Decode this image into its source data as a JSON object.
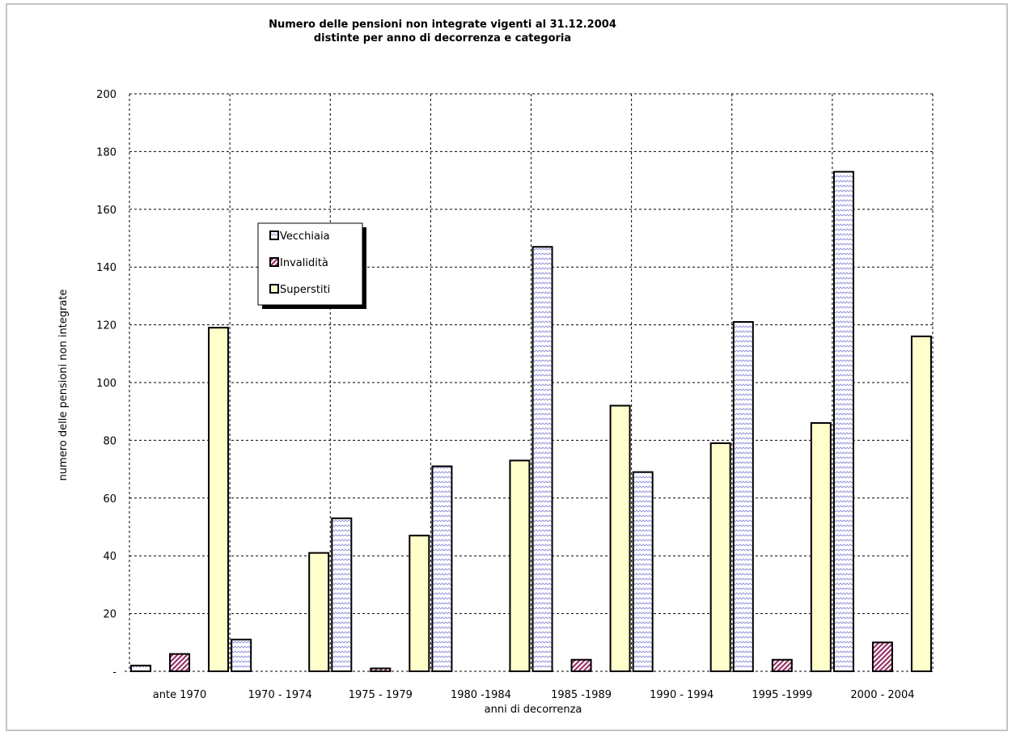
{
  "chart_data": {
    "type": "bar",
    "title": "Numero delle pensioni non integrate vigenti al 31.12.2004",
    "subtitle": "distinte per anno di decorrenza e categoria",
    "xlabel": "anni di decorrenza",
    "ylabel": "numero delle pensioni non integrate",
    "ylim": [
      0,
      200
    ],
    "yticks": [
      {
        "value": 0,
        "label": "-"
      },
      {
        "value": 20,
        "label": "20"
      },
      {
        "value": 40,
        "label": "40"
      },
      {
        "value": 60,
        "label": "60"
      },
      {
        "value": 80,
        "label": "80"
      },
      {
        "value": 100,
        "label": "100"
      },
      {
        "value": 120,
        "label": "120"
      },
      {
        "value": 140,
        "label": "140"
      },
      {
        "value": 160,
        "label": "160"
      },
      {
        "value": 180,
        "label": "180"
      },
      {
        "value": 200,
        "label": "200"
      }
    ],
    "grid": true,
    "legend_position": "upper-left",
    "categories": [
      "ante 1970",
      "1970 - 1974",
      "1975 - 1979",
      "1980 -1984",
      "1985 -1989",
      "1990 - 1994",
      "1995 -1999",
      "2000 - 2004"
    ],
    "series": [
      {
        "name": "Vecchiaia",
        "pattern": "wave",
        "color": "#ccccff",
        "values": [
          2,
          11,
          53,
          71,
          147,
          69,
          121,
          173
        ]
      },
      {
        "name": "Invalidità",
        "pattern": "diagonal",
        "color": "#993366",
        "values": [
          6,
          0,
          1,
          0,
          4,
          0,
          4,
          10
        ]
      },
      {
        "name": "Superstiti",
        "pattern": "solid",
        "color": "#ffffcc",
        "values": [
          119,
          41,
          47,
          73,
          92,
          79,
          86,
          116
        ]
      }
    ]
  }
}
